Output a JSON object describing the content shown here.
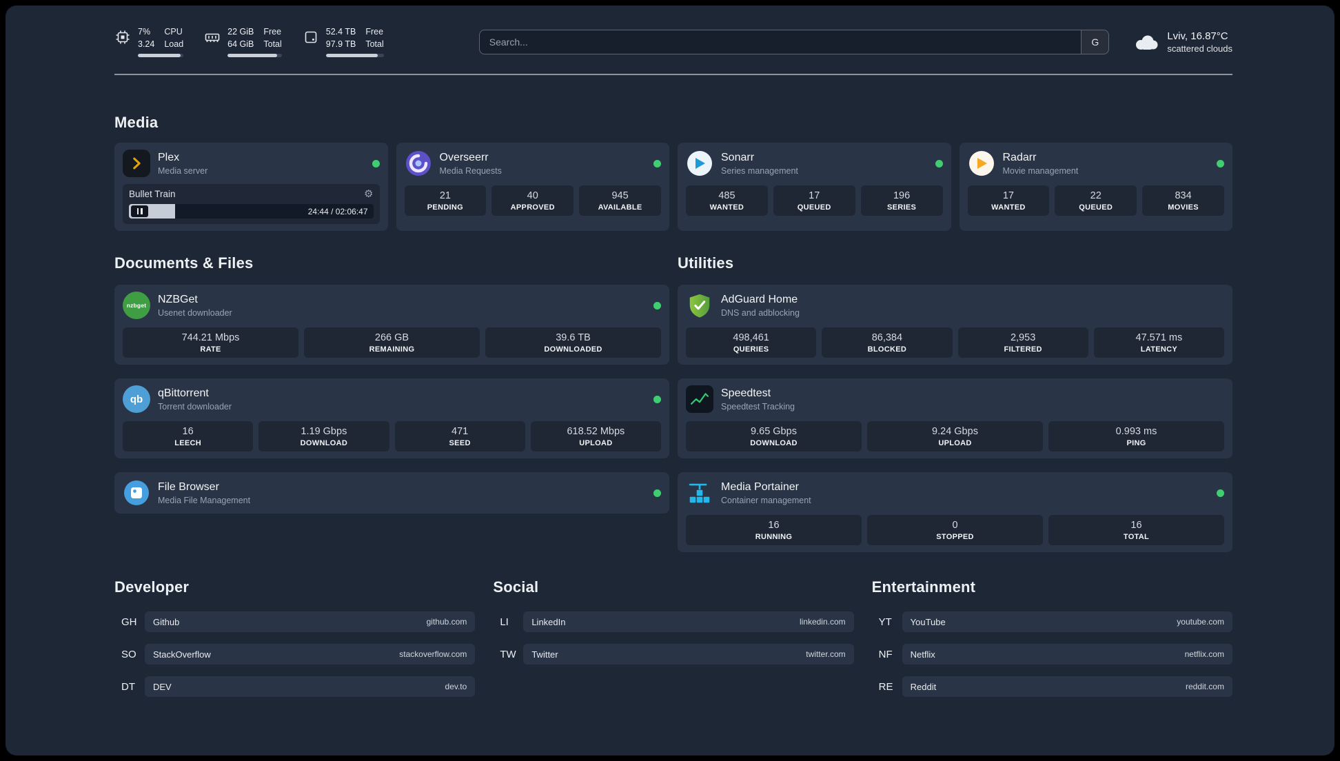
{
  "topbar": {
    "resources": [
      {
        "icon": "cpu",
        "line1": "7%",
        "line2": "3.24",
        "label1": "CPU",
        "label2": "Load",
        "bar_percent": 93
      },
      {
        "icon": "memory",
        "line1": "22 GiB",
        "line2": "64 GiB",
        "label1": "Free",
        "label2": "Total",
        "bar_percent": 91
      },
      {
        "icon": "disk",
        "line1": "52.4 TB",
        "line2": "97.9 TB",
        "label1": "Free",
        "label2": "Total",
        "bar_percent": 90
      }
    ],
    "search": {
      "placeholder": "Search...",
      "provider_label": "G"
    },
    "weather": {
      "line1": "Lviv, 16.87°C",
      "line2": "scattered clouds"
    }
  },
  "media": {
    "title": "Media",
    "plex": {
      "name": "Plex",
      "subtitle": "Media server",
      "status": "online",
      "now_playing": "Bullet Train",
      "time": "24:44 / 02:06:47",
      "progress_percent": 19
    },
    "overseerr": {
      "name": "Overseerr",
      "subtitle": "Media Requests",
      "status": "online",
      "stats": [
        {
          "value": "21",
          "label": "PENDING"
        },
        {
          "value": "40",
          "label": "APPROVED"
        },
        {
          "value": "945",
          "label": "AVAILABLE"
        }
      ]
    },
    "sonarr": {
      "name": "Sonarr",
      "subtitle": "Series management",
      "status": "online",
      "stats": [
        {
          "value": "485",
          "label": "WANTED"
        },
        {
          "value": "17",
          "label": "QUEUED"
        },
        {
          "value": "196",
          "label": "SERIES"
        }
      ]
    },
    "radarr": {
      "name": "Radarr",
      "subtitle": "Movie management",
      "status": "online",
      "stats": [
        {
          "value": "17",
          "label": "WANTED"
        },
        {
          "value": "22",
          "label": "QUEUED"
        },
        {
          "value": "834",
          "label": "MOVIES"
        }
      ]
    }
  },
  "documents": {
    "title": "Documents & Files",
    "nzbget": {
      "name": "NZBGet",
      "subtitle": "Usenet downloader",
      "status": "online",
      "icon_text": "nzbget",
      "stats": [
        {
          "value": "744.21 Mbps",
          "label": "RATE"
        },
        {
          "value": "266 GB",
          "label": "REMAINING"
        },
        {
          "value": "39.6 TB",
          "label": "DOWNLOADED"
        }
      ]
    },
    "qbittorrent": {
      "name": "qBittorrent",
      "subtitle": "Torrent downloader",
      "status": "online",
      "icon_text": "qb",
      "stats": [
        {
          "value": "16",
          "label": "LEECH"
        },
        {
          "value": "1.19 Gbps",
          "label": "DOWNLOAD"
        },
        {
          "value": "471",
          "label": "SEED"
        },
        {
          "value": "618.52 Mbps",
          "label": "UPLOAD"
        }
      ]
    },
    "filebrowser": {
      "name": "File Browser",
      "subtitle": "Media File Management",
      "status": "online"
    }
  },
  "utilities": {
    "title": "Utilities",
    "adguard": {
      "name": "AdGuard Home",
      "subtitle": "DNS and adblocking",
      "stats": [
        {
          "value": "498,461",
          "label": "QUERIES"
        },
        {
          "value": "86,384",
          "label": "BLOCKED"
        },
        {
          "value": "2,953",
          "label": "FILTERED"
        },
        {
          "value": "47.571 ms",
          "label": "LATENCY"
        }
      ]
    },
    "speedtest": {
      "name": "Speedtest",
      "subtitle": "Speedtest Tracking",
      "stats": [
        {
          "value": "9.65 Gbps",
          "label": "DOWNLOAD"
        },
        {
          "value": "9.24 Gbps",
          "label": "UPLOAD"
        },
        {
          "value": "0.993 ms",
          "label": "PING"
        }
      ]
    },
    "portainer": {
      "name": "Media Portainer",
      "subtitle": "Container management",
      "status": "online",
      "stats": [
        {
          "value": "16",
          "label": "RUNNING"
        },
        {
          "value": "0",
          "label": "STOPPED"
        },
        {
          "value": "16",
          "label": "TOTAL"
        }
      ]
    }
  },
  "bookmarks": [
    {
      "title": "Developer",
      "items": [
        {
          "abbr": "GH",
          "name": "Github",
          "domain": "github.com"
        },
        {
          "abbr": "SO",
          "name": "StackOverflow",
          "domain": "stackoverflow.com"
        },
        {
          "abbr": "DT",
          "name": "DEV",
          "domain": "dev.to"
        }
      ]
    },
    {
      "title": "Social",
      "items": [
        {
          "abbr": "LI",
          "name": "LinkedIn",
          "domain": "linkedin.com"
        },
        {
          "abbr": "TW",
          "name": "Twitter",
          "domain": "twitter.com"
        }
      ]
    },
    {
      "title": "Entertainment",
      "items": [
        {
          "abbr": "YT",
          "name": "YouTube",
          "domain": "youtube.com"
        },
        {
          "abbr": "NF",
          "name": "Netflix",
          "domain": "netflix.com"
        },
        {
          "abbr": "RE",
          "name": "Reddit",
          "domain": "reddit.com"
        }
      ]
    }
  ],
  "colors": {
    "status_online": "#3fcf70",
    "plex_amber": "#e5a00d",
    "overseerr_purple": "#5d50c9",
    "sonarr_blue": "#1c9bd9",
    "radarr_amber": "#f7a823",
    "nzbget_green": "#3f9e43",
    "qbittorrent_blue": "#4f9fd7",
    "adguard_green": "#6cb52d",
    "speedtest_green": "#2ecc71",
    "filebrowser_blue": "#459ee0",
    "portainer_blue": "#22b8eb"
  }
}
